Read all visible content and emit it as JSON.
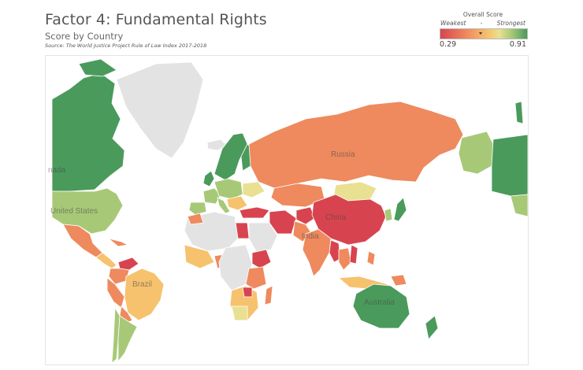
{
  "header": {
    "title": "Factor 4: Fundamental Rights",
    "subtitle": "Score by Country",
    "source": "Source: The World Justice Project Rule of Law Index 2017-2018"
  },
  "legend": {
    "title": "Overall Score",
    "weakest": "Weakest",
    "separator": "-",
    "strongest": "Strongest",
    "min": "0.29",
    "max": "0.91"
  },
  "map": {
    "labels": {
      "canada": "nada",
      "usa": "United States",
      "russia": "Russia",
      "china": "China",
      "india": "India",
      "brazil": "Brazil",
      "australia": "Australia"
    },
    "colors": {
      "strong": "#4a9a5c",
      "good": "#a7c977",
      "mid": "#f6c26d",
      "weak": "#ee8a5e",
      "weakest": "#d7444f",
      "no_data": "#e3e3e3"
    }
  }
}
